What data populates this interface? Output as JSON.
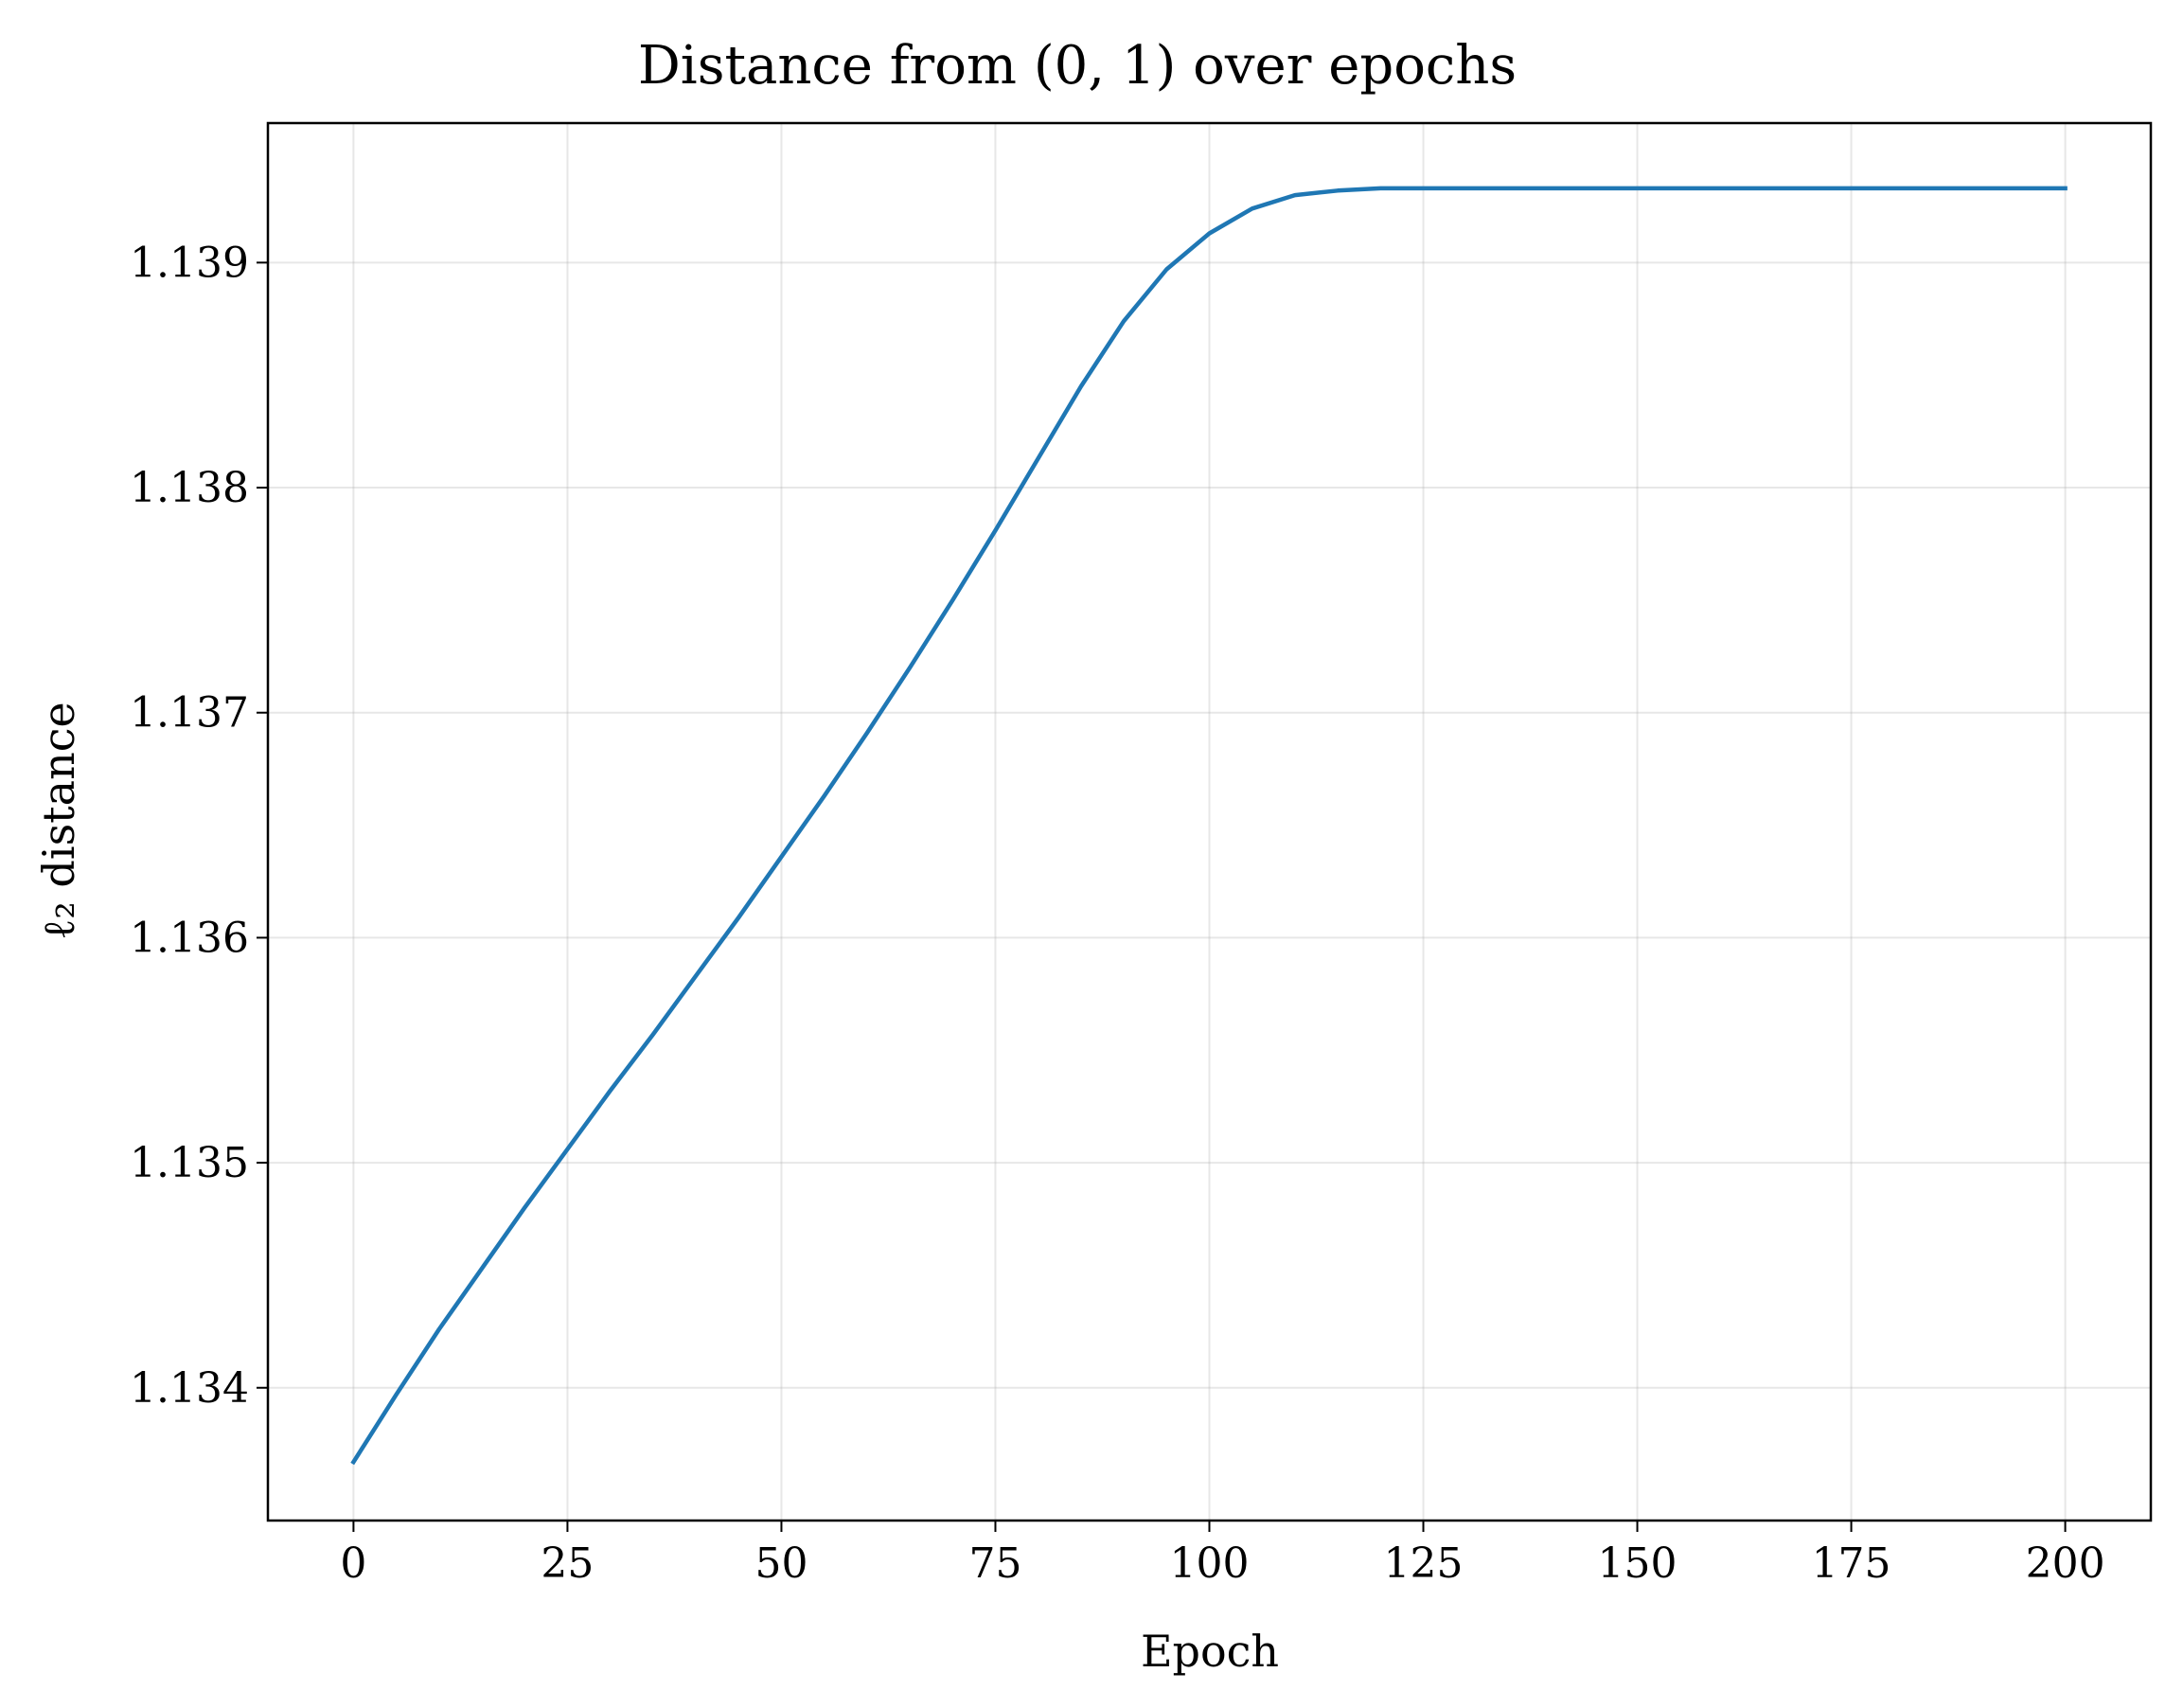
{
  "chart_data": {
    "type": "line",
    "title": "Distance from (0, 1) over epochs",
    "xlabel": "Epoch",
    "ylabel": "ℓ₂ distance",
    "xlim": [
      -10,
      210
    ],
    "ylim": [
      1.13341,
      1.13962
    ],
    "xticks": [
      0,
      25,
      50,
      75,
      100,
      125,
      150,
      175,
      200
    ],
    "xtick_labels": [
      "0",
      "25",
      "50",
      "75",
      "100",
      "125",
      "150",
      "175",
      "200"
    ],
    "yticks": [
      1.134,
      1.135,
      1.136,
      1.137,
      1.138,
      1.139
    ],
    "ytick_labels": [
      "1.134",
      "1.135",
      "1.136",
      "1.137",
      "1.138",
      "1.139"
    ],
    "grid": true,
    "legend": "none",
    "series": [
      {
        "color": "#1f77b4",
        "x": [
          0,
          5,
          10,
          15,
          20,
          25,
          30,
          35,
          40,
          45,
          50,
          55,
          60,
          65,
          70,
          75,
          80,
          85,
          90,
          95,
          100,
          105,
          110,
          115,
          120,
          125,
          130,
          135,
          140,
          150,
          160,
          170,
          180,
          190,
          200
        ],
        "y": [
          1.13367,
          1.13397,
          1.13426,
          1.13453,
          1.1348,
          1.13506,
          1.13532,
          1.13557,
          1.13583,
          1.13609,
          1.13636,
          1.13663,
          1.13691,
          1.1372,
          1.1375,
          1.13781,
          1.13813,
          1.13845,
          1.13874,
          1.13897,
          1.13913,
          1.13924,
          1.1393,
          1.13932,
          1.13933,
          1.13933,
          1.13933,
          1.13933,
          1.13933,
          1.13933,
          1.13933,
          1.13933,
          1.13933,
          1.13933,
          1.13933
        ]
      }
    ]
  }
}
